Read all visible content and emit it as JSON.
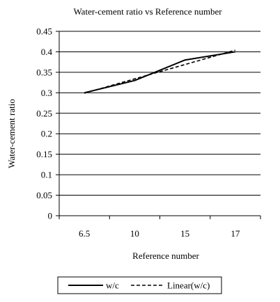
{
  "chart_data": {
    "type": "line",
    "title": "Water-cement ratio vs Reference number",
    "xlabel": "Reference number",
    "ylabel": "Water-cement ratio",
    "categories": [
      "6.5",
      "10",
      "15",
      "17"
    ],
    "ylim": [
      0,
      0.45
    ],
    "yticks": [
      "0",
      "0.05",
      "0.1",
      "0.15",
      "0.2",
      "0.25",
      "0.3",
      "0.35",
      "0.4",
      "0.45"
    ],
    "grid": true,
    "legend_position": "bottom",
    "series": [
      {
        "name": "w/c",
        "values": [
          0.3,
          0.33,
          0.38,
          0.4
        ],
        "style": "solid",
        "color": "#000000"
      },
      {
        "name": "Linear(w/c)",
        "values": [
          0.299,
          0.334,
          0.369,
          0.404
        ],
        "style": "dashed",
        "color": "#000000"
      }
    ]
  }
}
